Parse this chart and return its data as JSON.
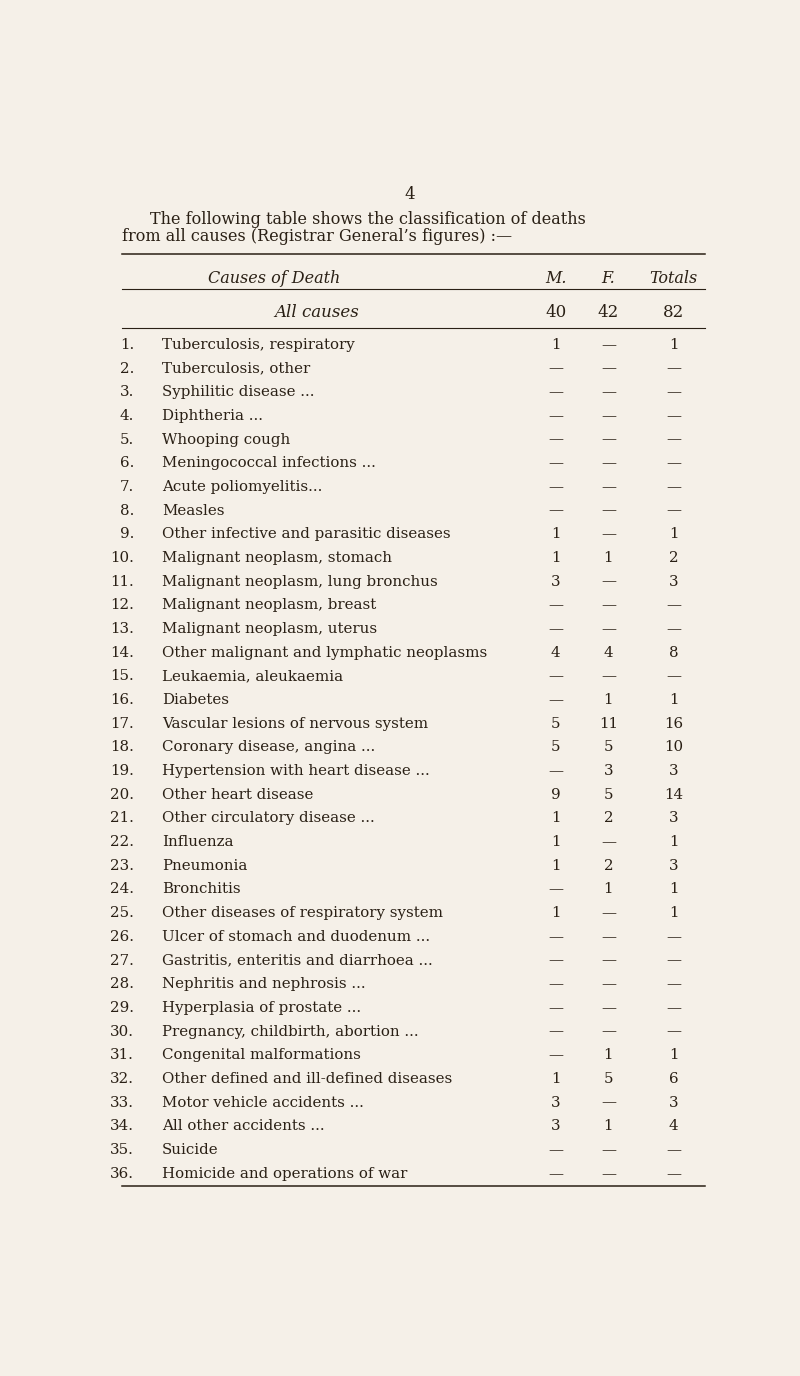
{
  "page_number": "4",
  "intro_text_line1": "The following table shows the classification of deaths",
  "intro_text_line2": "from all causes (Registrar General’s figures) :—",
  "col_header_cause": "Causes of Death",
  "col_header_m": "M.",
  "col_header_f": "F.",
  "col_header_totals": "Totals",
  "all_causes_label": "All causes",
  "all_causes_m": "40",
  "all_causes_f": "42",
  "all_causes_totals": "82",
  "rows": [
    {
      "num": "1.",
      "cause": "Tuberculosis, respiratory",
      "m": "1",
      "f": "—",
      "t": "1"
    },
    {
      "num": "2.",
      "cause": "Tuberculosis, other",
      "m": "—",
      "f": "—",
      "t": "—"
    },
    {
      "num": "3.",
      "cause": "Syphilitic disease ...",
      "m": "—",
      "f": "—",
      "t": "—"
    },
    {
      "num": "4.",
      "cause": "Diphtheria ...",
      "m": "—",
      "f": "—",
      "t": "—"
    },
    {
      "num": "5.",
      "cause": "Whooping cough",
      "m": "—",
      "f": "—",
      "t": "—"
    },
    {
      "num": "6.",
      "cause": "Meningococcal infections ...",
      "m": "—",
      "f": "—",
      "t": "—"
    },
    {
      "num": "7.",
      "cause": "Acute poliomyelitis...",
      "m": "—",
      "f": "—",
      "t": "—"
    },
    {
      "num": "8.",
      "cause": "Measles",
      "m": "—",
      "f": "—",
      "t": "—"
    },
    {
      "num": "9.",
      "cause": "Other infective and parasitic diseases",
      "m": "1",
      "f": "—",
      "t": "1"
    },
    {
      "num": "10.",
      "cause": "Malignant neoplasm, stomach",
      "m": "1",
      "f": "1",
      "t": "2"
    },
    {
      "num": "11.",
      "cause": "Malignant neoplasm, lung bronchus",
      "m": "3",
      "f": "—",
      "t": "3"
    },
    {
      "num": "12.",
      "cause": "Malignant neoplasm, breast",
      "m": "—",
      "f": "—",
      "t": "—"
    },
    {
      "num": "13.",
      "cause": "Malignant neoplasm, uterus",
      "m": "—",
      "f": "—",
      "t": "—"
    },
    {
      "num": "14.",
      "cause": "Other malignant and lymphatic neoplasms",
      "m": "4",
      "f": "4",
      "t": "8"
    },
    {
      "num": "15.",
      "cause": "Leukaemia, aleukaemia",
      "m": "—",
      "f": "—",
      "t": "—"
    },
    {
      "num": "16.",
      "cause": "Diabetes",
      "m": "—",
      "f": "1",
      "t": "1"
    },
    {
      "num": "17.",
      "cause": "Vascular lesions of nervous system",
      "m": "5",
      "f": "11",
      "t": "16"
    },
    {
      "num": "18.",
      "cause": "Coronary disease, angina ...",
      "m": "5",
      "f": "5",
      "t": "10"
    },
    {
      "num": "19.",
      "cause": "Hypertension with heart disease ...",
      "m": "—",
      "f": "3",
      "t": "3"
    },
    {
      "num": "20.",
      "cause": "Other heart disease",
      "m": "9",
      "f": "5",
      "t": "14"
    },
    {
      "num": "21.",
      "cause": "Other circulatory disease ...",
      "m": "1",
      "f": "2",
      "t": "3"
    },
    {
      "num": "22.",
      "cause": "Influenza",
      "m": "1",
      "f": "—",
      "t": "1"
    },
    {
      "num": "23.",
      "cause": "Pneumonia",
      "m": "1",
      "f": "2",
      "t": "3"
    },
    {
      "num": "24.",
      "cause": "Bronchitis",
      "m": "—",
      "f": "1",
      "t": "1"
    },
    {
      "num": "25.",
      "cause": "Other diseases of respiratory system",
      "m": "1",
      "f": "—",
      "t": "1"
    },
    {
      "num": "26.",
      "cause": "Ulcer of stomach and duodenum ...",
      "m": "—",
      "f": "—",
      "t": "—"
    },
    {
      "num": "27.",
      "cause": "Gastritis, enteritis and diarrhoea ...",
      "m": "—",
      "f": "—",
      "t": "—"
    },
    {
      "num": "28.",
      "cause": "Nephritis and nephrosis ...",
      "m": "—",
      "f": "—",
      "t": "—"
    },
    {
      "num": "29.",
      "cause": "Hyperplasia of prostate ...",
      "m": "—",
      "f": "—",
      "t": "—"
    },
    {
      "num": "30.",
      "cause": "Pregnancy, childbirth, abortion ...",
      "m": "—",
      "f": "—",
      "t": "—"
    },
    {
      "num": "31.",
      "cause": "Congenital malformations",
      "m": "—",
      "f": "1",
      "t": "1"
    },
    {
      "num": "32.",
      "cause": "Other defined and ill-defined diseases",
      "m": "1",
      "f": "5",
      "t": "6"
    },
    {
      "num": "33.",
      "cause": "Motor vehicle accidents ...",
      "m": "3",
      "f": "—",
      "t": "3"
    },
    {
      "num": "34.",
      "cause": "All other accidents ...",
      "m": "3",
      "f": "1",
      "t": "4"
    },
    {
      "num": "35.",
      "cause": "Suicide",
      "m": "—",
      "f": "—",
      "t": "—"
    },
    {
      "num": "36.",
      "cause": "Homicide and operations of war",
      "m": "—",
      "f": "—",
      "t": "—"
    }
  ],
  "bg_color": "#f5f0e8",
  "text_color": "#2a2015",
  "font_size_intro": 11.5,
  "font_size_header": 11.5,
  "font_size_row": 10.8,
  "font_size_page": 12
}
